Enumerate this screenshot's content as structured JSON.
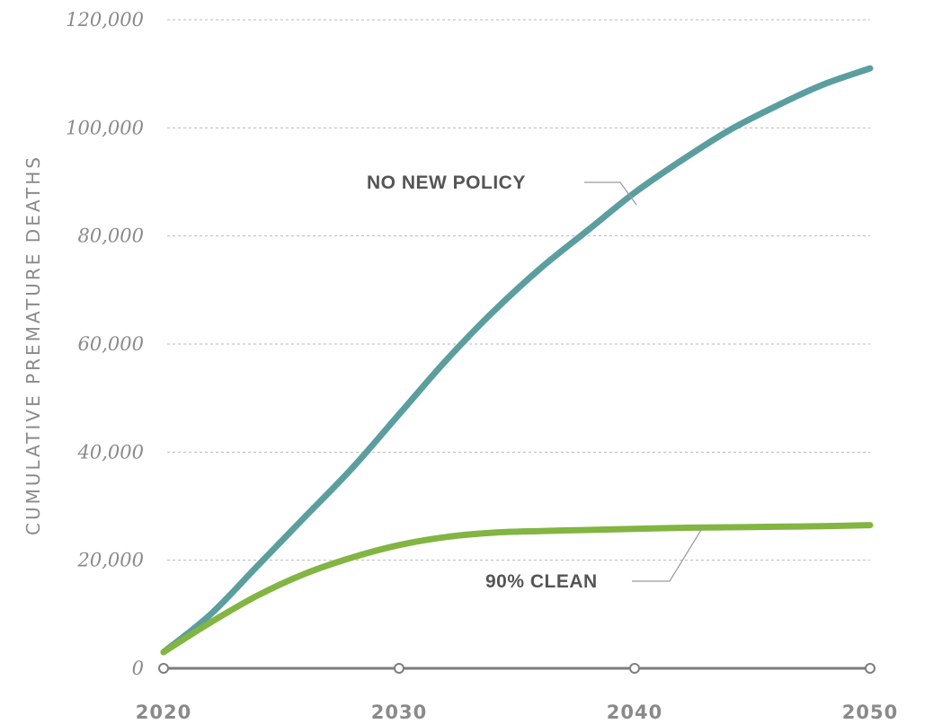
{
  "chart_data": {
    "type": "line",
    "title": "",
    "xlabel": "",
    "ylabel": "CUMULATIVE PREMATURE DEATHS",
    "x_ticks": [
      "2020",
      "2030",
      "2040",
      "2050"
    ],
    "y_ticks": [
      "0",
      "20,000",
      "40,000",
      "60,000",
      "80,000",
      "100,000",
      "120,000"
    ],
    "xlim": [
      2020,
      2050
    ],
    "ylim": [
      0,
      120000
    ],
    "grid": true,
    "series": [
      {
        "name": "NO NEW POLICY",
        "color": "#5b9ea0",
        "x": [
          2020,
          2022,
          2024,
          2026,
          2028,
          2030,
          2032,
          2034,
          2036,
          2038,
          2040,
          2042,
          2044,
          2046,
          2048,
          2050
        ],
        "y": [
          3000,
          10000,
          19000,
          28000,
          37000,
          47000,
          57000,
          66000,
          74000,
          81000,
          88000,
          94000,
          99500,
          104000,
          108000,
          111000
        ]
      },
      {
        "name": "90% CLEAN",
        "color": "#82b541",
        "x": [
          2020,
          2022,
          2024,
          2026,
          2028,
          2030,
          2032,
          2034,
          2036,
          2038,
          2040,
          2042,
          2044,
          2046,
          2048,
          2050
        ],
        "y": [
          3000,
          8500,
          13500,
          17500,
          20500,
          22800,
          24300,
          25100,
          25400,
          25600,
          25800,
          26000,
          26100,
          26200,
          26300,
          26500
        ]
      }
    ]
  }
}
